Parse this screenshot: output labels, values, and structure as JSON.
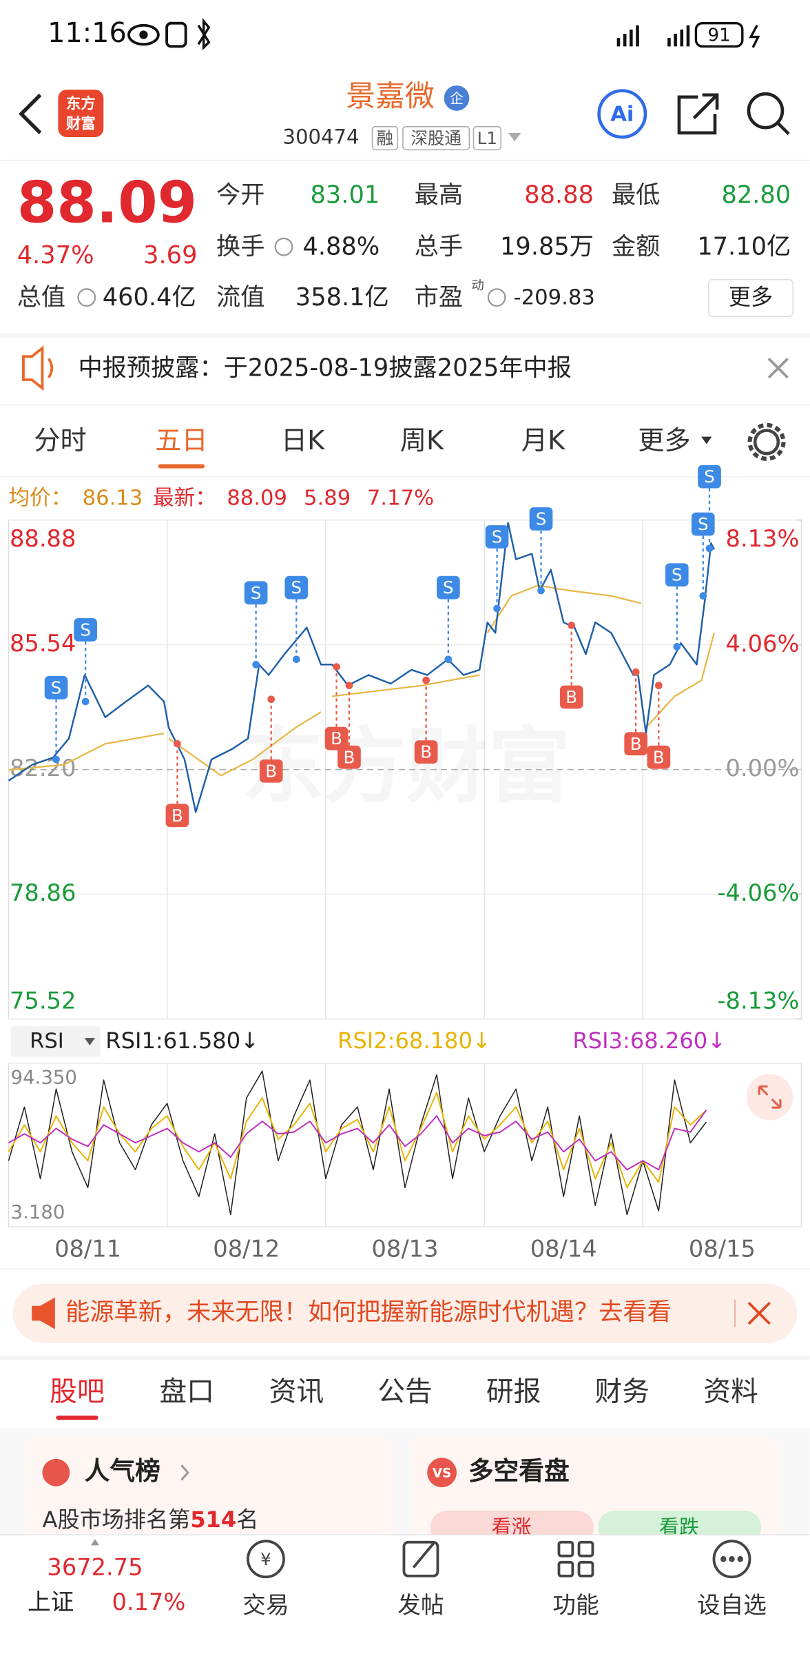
{
  "status_bar": {
    "time": "11:16",
    "battery": "91"
  },
  "header": {
    "logo": [
      "东方",
      "财富"
    ],
    "name": "景嘉微",
    "badge": "企",
    "code": "300474",
    "tags": [
      "融",
      "深股通",
      "L1"
    ]
  },
  "quote": {
    "price": "88.09",
    "change_pct": "4.37%",
    "change": "3.69",
    "fields": [
      {
        "label": "今开",
        "value": "83.01",
        "color": "#1a9a3a"
      },
      {
        "label": "最高",
        "value": "88.88",
        "color": "#e0282e"
      },
      {
        "label": "最低",
        "value": "82.80",
        "color": "#1a9a3a"
      },
      {
        "label": "换手",
        "value": "4.88%",
        "color": "#222"
      },
      {
        "label": "总手",
        "value": "19.85万",
        "color": "#222"
      },
      {
        "label": "金额",
        "value": "17.10亿",
        "color": "#222"
      },
      {
        "label": "总值",
        "value": "460.4亿",
        "color": "#222"
      },
      {
        "label": "流值",
        "value": "358.1亿",
        "color": "#222"
      },
      {
        "label": "市盈",
        "sup": "动",
        "value": "-209.83",
        "color": "#222"
      }
    ],
    "more": "更多"
  },
  "notice": "中报预披露：于2025-08-19披露2025年中报",
  "chart_tabs": [
    "分时",
    "五日",
    "日K",
    "周K",
    "月K",
    "更多"
  ],
  "active_chart_tab": 1,
  "summary": {
    "avg_label": "均价：",
    "avg": "86.13",
    "last_label": "最新：",
    "last": "88.09",
    "change": "5.89",
    "change_pct": "7.17%"
  },
  "watermark": "东方财富",
  "chart_data": [
    {
      "type": "line",
      "xlim": [
        0,
        5
      ],
      "ylim": [
        75.52,
        88.88
      ],
      "yticks": [
        88.88,
        85.54,
        {
          "value": 82.2,
          "label": "82.20"
        },
        78.86,
        75.52
      ],
      "y2lim": [
        -8.13,
        8.13
      ],
      "y2ticks": [
        {
          "value": 8.13,
          "label": "8.13%"
        },
        {
          "value": 4.06,
          "label": "4.06%"
        },
        {
          "value": 0,
          "label": "0.00%"
        },
        {
          "value": -4.06,
          "label": "-4.06%"
        },
        {
          "value": -8.13,
          "label": "-8.13%"
        }
      ],
      "series": [
        {
          "color": "#1f5fa8",
          "x": [
            0,
            0.15,
            0.28,
            0.38,
            0.48,
            0.61,
            0.74,
            0.88,
            0.98,
            1.01,
            1.11,
            1.18,
            1.28,
            1.41,
            1.51,
            1.58,
            1.64,
            1.74,
            1.88,
            1.97,
            2.04,
            2.14,
            2.27,
            2.41,
            2.54,
            2.64,
            2.77,
            2.87,
            2.97,
            3.02,
            3.07,
            3.15,
            3.2,
            3.3,
            3.35,
            3.42,
            3.5,
            3.57,
            3.64,
            3.7,
            3.8,
            3.94,
            3.97,
            4.02,
            4.07,
            4.17,
            4.24,
            4.34,
            4.39,
            4.43,
            4.45
          ],
          "values": [
            81.9,
            82.33,
            82.52,
            83.03,
            84.73,
            83.6,
            84.02,
            84.45,
            84.02,
            83.32,
            82.47,
            81.06,
            82.47,
            82.75,
            83.03,
            85.01,
            84.73,
            85.29,
            86.0,
            85.01,
            85.01,
            84.45,
            84.73,
            84.5,
            84.87,
            84.73,
            85.15,
            84.73,
            84.87,
            86.14,
            85.86,
            88.8,
            87.83,
            87.98,
            86.99,
            87.55,
            86.14,
            86.0,
            85.29,
            86.14,
            85.86,
            84.73,
            84.73,
            83.17,
            84.73,
            85.01,
            85.58,
            85.01,
            86.71,
            88.26,
            88.09
          ]
        },
        {
          "color": "#e8b84a",
          "x": [
            0,
            0.35,
            0.61,
            0.98,
            1.0,
            1.01,
            1.34,
            1.54,
            1.81,
            1.97,
            2.0,
            2.04,
            2.61,
            2.97,
            3.0,
            3.02,
            3.17,
            3.34,
            3.54,
            3.8,
            3.99,
            4.0,
            4.02,
            4.2,
            4.37,
            4.45
          ],
          "values": [
            82.19,
            82.33,
            82.89,
            83.17,
            null,
            83.03,
            82.04,
            82.47,
            83.32,
            83.74,
            null,
            84.16,
            84.45,
            84.73,
            null,
            85.86,
            86.85,
            87.13,
            86.99,
            86.85,
            86.65,
            null,
            83.32,
            84.16,
            84.59,
            85.86
          ]
        }
      ],
      "markers": [
        {
          "label": "S",
          "x": 0.3,
          "value": 82.47
        },
        {
          "label": "S",
          "x": 0.485,
          "value": 84.02
        },
        {
          "label": "B",
          "x": 1.064,
          "value": 82.89
        },
        {
          "label": "S",
          "x": 1.56,
          "value": 85.01
        },
        {
          "label": "B",
          "x": 1.656,
          "value": 84.08
        },
        {
          "label": "S",
          "x": 1.815,
          "value": 85.15
        },
        {
          "label": "B",
          "x": 2.068,
          "value": 84.95
        },
        {
          "label": "B",
          "x": 2.148,
          "value": 84.45
        },
        {
          "label": "B",
          "x": 2.633,
          "value": 84.59
        },
        {
          "label": "S",
          "x": 2.773,
          "value": 85.15
        },
        {
          "label": "S",
          "x": 3.08,
          "value": 86.51
        },
        {
          "label": "S",
          "x": 3.358,
          "value": 86.99
        },
        {
          "label": "B",
          "x": 3.55,
          "value": 86.06
        },
        {
          "label": "B",
          "x": 3.956,
          "value": 84.81
        },
        {
          "label": "B",
          "x": 4.1,
          "value": 84.45
        },
        {
          "label": "S",
          "x": 4.215,
          "value": 85.49
        },
        {
          "label": "S",
          "x": 4.38,
          "value": 86.85
        },
        {
          "label": "S",
          "x": 4.42,
          "value": 88.12
        }
      ]
    },
    {
      "type": "line",
      "indicator": "RSI",
      "xlim": [
        0,
        5
      ],
      "ylim": [
        3.18,
        94.35
      ],
      "yticks": [
        {
          "value": 94.35,
          "label": "94.350"
        },
        {
          "value": 3.18,
          "label": "3.180"
        }
      ],
      "xticks": [
        {
          "value": 0.5,
          "label": "08/11"
        },
        {
          "value": 1.5,
          "label": "08/12"
        },
        {
          "value": 2.5,
          "label": "08/13"
        },
        {
          "value": 3.5,
          "label": "08/14"
        },
        {
          "value": 4.5,
          "label": "08/15"
        }
      ],
      "x": [
        0,
        0.1,
        0.2,
        0.3,
        0.4,
        0.5,
        0.6,
        0.7,
        0.8,
        0.9,
        1,
        1.1,
        1.2,
        1.3,
        1.4,
        1.5,
        1.6,
        1.7,
        1.8,
        1.9,
        2,
        2.1,
        2.2,
        2.3,
        2.4,
        2.5,
        2.6,
        2.7,
        2.8,
        2.9,
        3,
        3.1,
        3.2,
        3.3,
        3.4,
        3.5,
        3.6,
        3.7,
        3.8,
        3.9,
        4,
        4.1,
        4.2,
        4.3,
        4.4
      ],
      "series": [
        {
          "name": "RSI1",
          "legend": "RSI1:61.580↓",
          "color": "#222222",
          "values": [
            40,
            70,
            30,
            80,
            45,
            25,
            85,
            50,
            35,
            60,
            72,
            40,
            20,
            55,
            10,
            75,
            90,
            40,
            65,
            85,
            30,
            60,
            70,
            35,
            80,
            25,
            60,
            88,
            30,
            75,
            45,
            65,
            80,
            40,
            70,
            20,
            65,
            15,
            55,
            10,
            40,
            12,
            85,
            50,
            61.58
          ]
        },
        {
          "name": "RSI2",
          "legend": "RSI2:68.180↓",
          "color": "#e8b400",
          "values": [
            45,
            60,
            45,
            65,
            50,
            40,
            70,
            55,
            45,
            58,
            65,
            48,
            35,
            50,
            30,
            62,
            75,
            52,
            60,
            72,
            45,
            58,
            63,
            45,
            70,
            40,
            58,
            78,
            45,
            65,
            52,
            60,
            70,
            50,
            62,
            35,
            58,
            30,
            50,
            25,
            40,
            28,
            70,
            60,
            68.18
          ]
        },
        {
          "name": "RSI3",
          "legend": "RSI3:68.260↓",
          "color": "#c030c0",
          "values": [
            50,
            55,
            50,
            58,
            52,
            48,
            60,
            55,
            50,
            54,
            58,
            50,
            45,
            50,
            42,
            55,
            62,
            55,
            56,
            62,
            50,
            55,
            58,
            50,
            60,
            48,
            55,
            65,
            50,
            58,
            54,
            56,
            62,
            52,
            56,
            45,
            52,
            40,
            45,
            35,
            40,
            35,
            58,
            56,
            68.26
          ]
        }
      ]
    }
  ],
  "banner": "能源革新，未来无限！如何把握新能源时代机遇？去看看",
  "tabs": [
    "股吧",
    "盘口",
    "资讯",
    "公告",
    "研报",
    "财务",
    "资料"
  ],
  "active_tab": 0,
  "cards": {
    "popularity": {
      "title": "人气榜",
      "prefix": "A股市场排名第",
      "rank": "514",
      "suffix": "名"
    },
    "sentiment": {
      "title": "多空看盘",
      "up": "看涨",
      "down": "看跌"
    }
  },
  "bottom_nav": {
    "index_value": "3672.75",
    "index_name": "上证",
    "index_change": "0.17%",
    "items": [
      "交易",
      "发帖",
      "功能",
      "设自选"
    ]
  }
}
